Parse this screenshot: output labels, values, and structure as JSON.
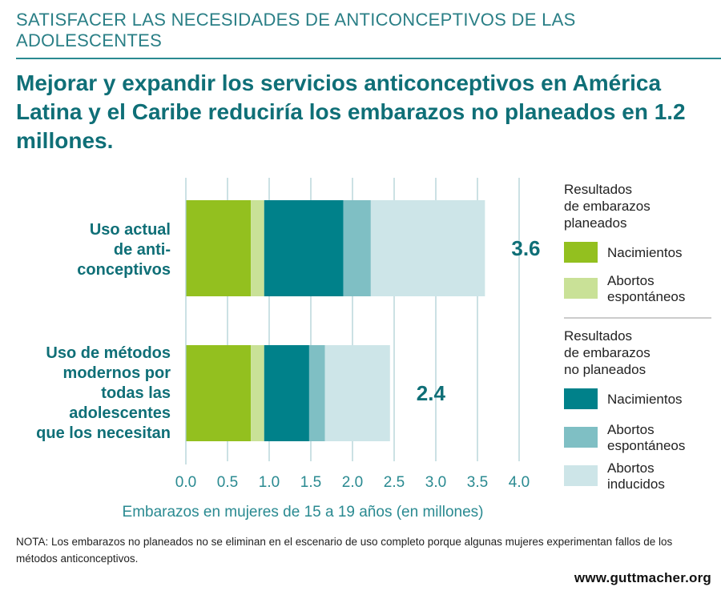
{
  "header": {
    "kicker": "SATISFACER LAS NECESIDADES DE ANTICONCEPTIVOS DE LAS ADOLESCENTES",
    "title": "Mejorar y expandir los servicios anticonceptivos en América Latina y el Caribe reduciría los embarazos no planeados en 1.2 millones."
  },
  "chart_data": {
    "type": "bar",
    "orientation": "horizontal",
    "stacked": true,
    "categories": [
      [
        "Uso actual",
        "de anti-",
        "conceptivos"
      ],
      [
        "Uso de métodos",
        "modernos por",
        "todas las",
        "adolescentes",
        "que los necesitan"
      ]
    ],
    "totals": [
      "3.6",
      "2.4"
    ],
    "series": [
      {
        "name": "Nacimientos",
        "group": "planeados",
        "color": "#93c01f",
        "values": [
          0.78,
          0.78
        ]
      },
      {
        "name": "Abortos espontáneos",
        "group": "planeados",
        "color": "#c9e197",
        "values": [
          0.16,
          0.16
        ]
      },
      {
        "name": "Nacimientos",
        "group": "no_planeados",
        "color": "#00818a",
        "values": [
          0.95,
          0.54
        ]
      },
      {
        "name": "Abortos espontáneos",
        "group": "no_planeados",
        "color": "#7fbfc4",
        "values": [
          0.33,
          0.19
        ]
      },
      {
        "name": "Abortos inducidos",
        "group": "no_planeados",
        "color": "#cde5e8",
        "values": [
          1.37,
          0.78
        ]
      }
    ],
    "xlim": [
      0,
      4.0
    ],
    "xticks": [
      "0.0",
      "0.5",
      "1.0",
      "1.5",
      "2.0",
      "2.5",
      "3.0",
      "3.5",
      "4.0"
    ],
    "xlabel": "Embarazos en mujeres de 15 a 19 años (en millones)",
    "grid": true,
    "legend_position": "right",
    "legend": {
      "group1_title": [
        "Resultados",
        "de embarazos",
        "planeados"
      ],
      "group1_items": [
        [
          "Nacimientos"
        ],
        [
          "Abortos",
          "espontáneos"
        ]
      ],
      "group2_title": [
        "Resultados",
        "de embarazos",
        "no planeados"
      ],
      "group2_items": [
        [
          "Nacimientos"
        ],
        [
          "Abortos",
          "espontáneos"
        ],
        [
          "Abortos",
          "inducidos"
        ]
      ]
    }
  },
  "footer": {
    "note": "NOTA: Los embarazos no planeados no se eliminan en el escenario de uso completo porque algunas mujeres experimentan fallos de los métodos anticonceptivos.",
    "url": "www.guttmacher.org"
  },
  "colors": {
    "accent": "#0f6f77",
    "grid": "#a9cdd1",
    "axis_text": "#2a8a91"
  }
}
